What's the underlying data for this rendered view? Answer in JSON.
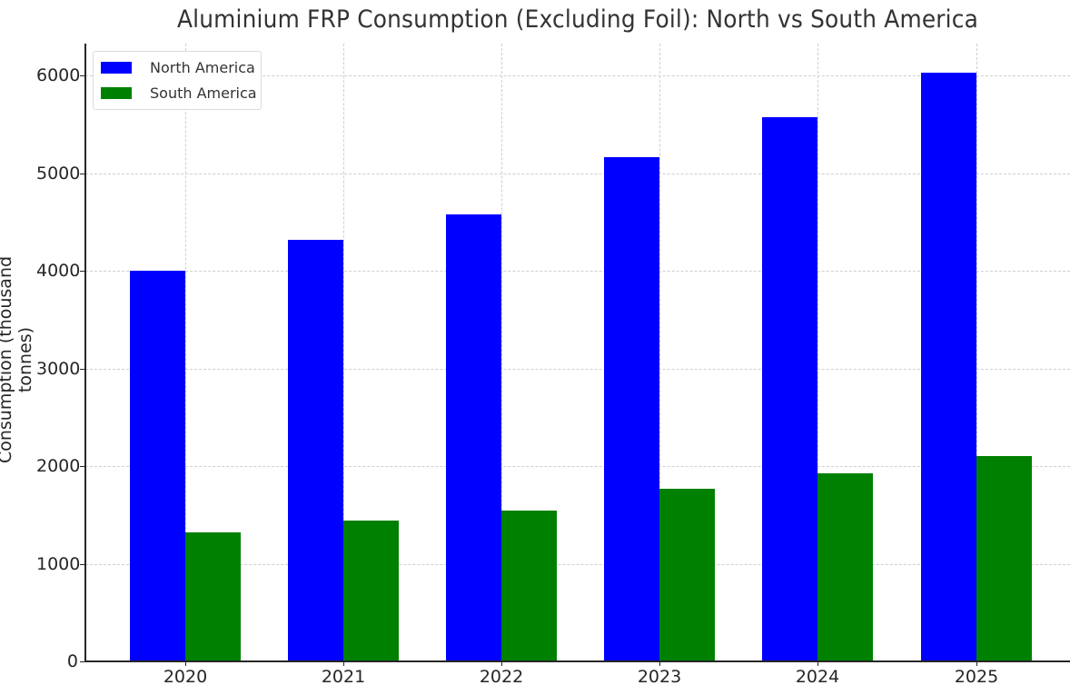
{
  "chart_data": {
    "type": "bar",
    "title": "Aluminium FRP Consumption (Excluding Foil): North vs South America",
    "xlabel": "",
    "ylabel": "Consumption (thousand tonnes)",
    "categories": [
      "2020",
      "2021",
      "2022",
      "2023",
      "2024",
      "2025"
    ],
    "series": [
      {
        "name": "North America",
        "color": "#0000ff",
        "values": [
          4000,
          4320,
          4580,
          5160,
          5570,
          6030
        ]
      },
      {
        "name": "South America",
        "color": "#008000",
        "values": [
          1320,
          1440,
          1540,
          1770,
          1930,
          2100
        ]
      }
    ],
    "ylim": [
      0,
      6330
    ],
    "yticks": [
      0,
      1000,
      2000,
      3000,
      4000,
      5000,
      6000
    ],
    "grid": true,
    "legend_position": "upper left"
  },
  "legend": {
    "items": [
      {
        "label": "North America",
        "color": "#0000ff"
      },
      {
        "label": "South America",
        "color": "#008000"
      }
    ]
  }
}
